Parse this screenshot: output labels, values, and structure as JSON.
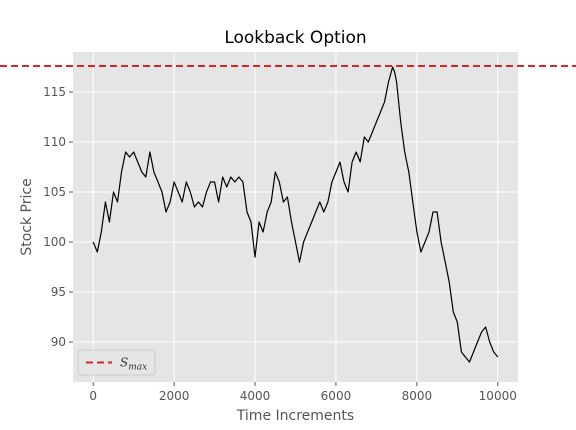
{
  "chart_data": {
    "type": "line",
    "title": "Lookback Option",
    "xlabel": "Time Increments",
    "ylabel": "Stock Price",
    "xlim": [
      -500,
      10500
    ],
    "ylim": [
      86,
      119
    ],
    "x_ticks": [
      0,
      2000,
      4000,
      6000,
      8000,
      10000
    ],
    "x_tick_labels": [
      "0",
      "2000",
      "4000",
      "6000",
      "8000",
      "10000"
    ],
    "y_ticks": [
      90,
      95,
      100,
      105,
      110,
      115
    ],
    "y_tick_labels": [
      "90",
      "95",
      "100",
      "105",
      "110",
      "115"
    ],
    "grid": true,
    "background_color": "#e5e5e5",
    "grid_color": "#ffffff",
    "legend_placement": "lower-left",
    "series": [
      {
        "name": "",
        "color": "#000000",
        "style": "solid",
        "x": [
          0,
          100,
          200,
          300,
          400,
          500,
          600,
          700,
          800,
          900,
          1000,
          1100,
          1200,
          1300,
          1400,
          1500,
          1600,
          1700,
          1800,
          1900,
          2000,
          2100,
          2200,
          2300,
          2400,
          2500,
          2600,
          2700,
          2800,
          2900,
          3000,
          3100,
          3200,
          3300,
          3400,
          3500,
          3600,
          3700,
          3800,
          3900,
          4000,
          4100,
          4200,
          4300,
          4400,
          4500,
          4600,
          4700,
          4800,
          4900,
          5000,
          5100,
          5200,
          5300,
          5400,
          5500,
          5600,
          5700,
          5800,
          5900,
          6000,
          6100,
          6200,
          6300,
          6400,
          6500,
          6600,
          6700,
          6800,
          6900,
          7000,
          7100,
          7200,
          7300,
          7400,
          7450,
          7500,
          7600,
          7700,
          7800,
          7900,
          8000,
          8100,
          8200,
          8300,
          8400,
          8500,
          8600,
          8700,
          8800,
          8900,
          9000,
          9100,
          9200,
          9300,
          9400,
          9500,
          9600,
          9700,
          9800,
          9900,
          10000
        ],
        "y": [
          100,
          99,
          101,
          104,
          102,
          105,
          104,
          107,
          109,
          108.5,
          109,
          108,
          107,
          106.5,
          109,
          107,
          106,
          105,
          103,
          104,
          106,
          105,
          104,
          106,
          105,
          103.5,
          104,
          103.5,
          105,
          106,
          106,
          104,
          106.5,
          105.5,
          106.5,
          106,
          106.5,
          106,
          103,
          102,
          98.5,
          102,
          101,
          103,
          104,
          107,
          106,
          104,
          104.5,
          102,
          100,
          98,
          100,
          101,
          102,
          103,
          104,
          103,
          104,
          106,
          107,
          108,
          106,
          105,
          108,
          109,
          108,
          110.5,
          110,
          111,
          112,
          113,
          114,
          116,
          117.5,
          117,
          116,
          112,
          109,
          107,
          104,
          101,
          99,
          100,
          101,
          103,
          103,
          100,
          98,
          96,
          93,
          92,
          89,
          88.5,
          88,
          89,
          90,
          91,
          91.5,
          90,
          89,
          88.5
        ]
      },
      {
        "name": "S_max",
        "color": "#d62728",
        "style": "dashed",
        "y_constant": 117.6
      }
    ],
    "legend": [
      {
        "label": "S",
        "subscript": "max",
        "color": "#d62728",
        "style": "dashed"
      }
    ]
  }
}
